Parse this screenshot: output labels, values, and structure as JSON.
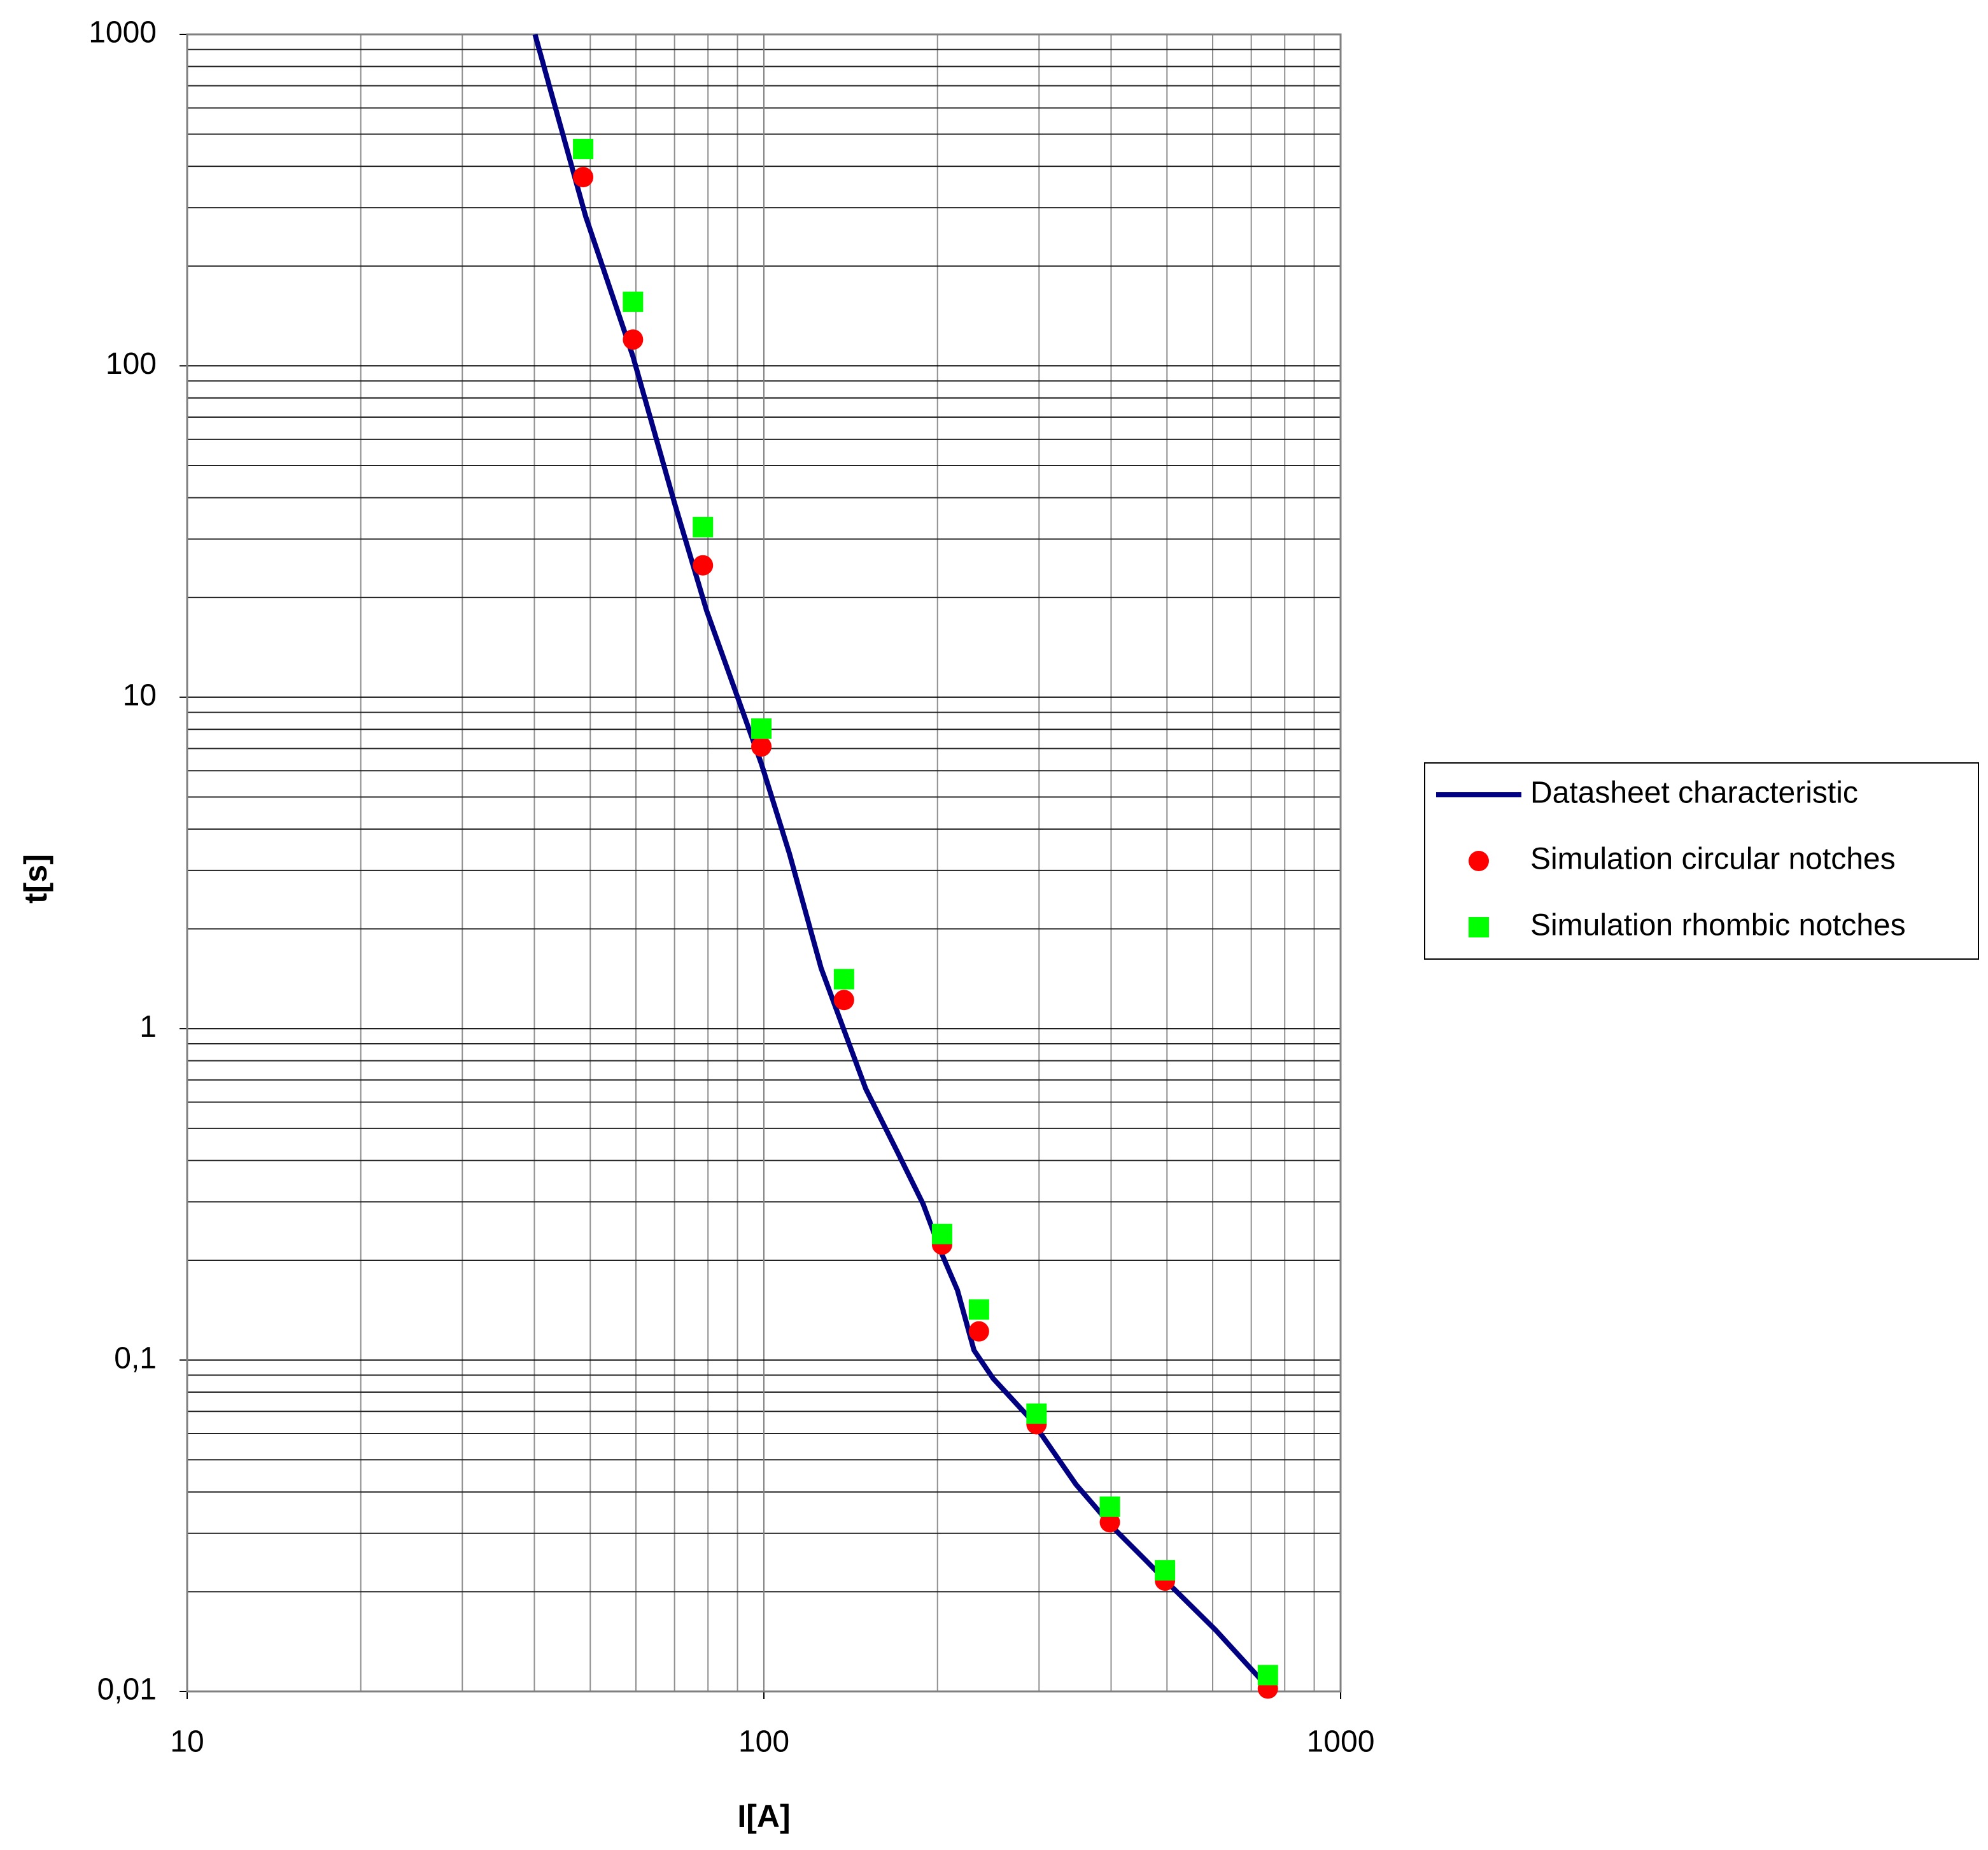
{
  "chart_data": {
    "type": "line",
    "x_label": "I[A]",
    "y_label": "t[s]",
    "log_x": true,
    "log_y": true,
    "grid": true,
    "minor_grid": true,
    "legend": "right",
    "xlim": [
      10,
      1000
    ],
    "ylim": [
      0.01,
      1000
    ],
    "xticks": [
      10,
      100,
      1000
    ],
    "yticks": [
      {
        "value": 0.01,
        "label": "0,01"
      },
      {
        "value": 0.1,
        "label": "0,1"
      },
      1,
      10,
      100,
      1000
    ],
    "series": [
      {
        "name": "Datasheet characteristic",
        "color": "#000080",
        "marker": "none",
        "x": [
          40.1,
          49.1,
          59.3,
          70,
          79.6,
          99,
          110.7,
          125.7,
          150.2,
          170.6,
          188.8,
          203.7,
          216.6,
          231.4,
          249.6,
          290.8,
          347.4,
          404.6,
          459,
          508,
          607.6,
          726,
          760
        ],
        "values": [
          1000,
          282,
          106.6,
          38.5,
          18.2,
          6.3,
          3.38,
          1.52,
          0.658,
          0.423,
          0.296,
          0.208,
          0.1624,
          0.107,
          0.0881,
          0.066,
          0.0422,
          0.031,
          0.0249,
          0.0208,
          0.0153,
          0.0109,
          0.01
        ]
      },
      {
        "name": "Simulation circular notches",
        "color": "#ff0000",
        "marker": "circle",
        "x": [
          48.6,
          59.3,
          78.4,
          99,
          137.7,
          203.7,
          236,
          297,
          398,
          496,
          748
        ],
        "values": [
          371,
          120,
          25,
          7.1,
          1.22,
          0.223,
          0.122,
          0.064,
          0.0324,
          0.0216,
          0.0102
        ]
      },
      {
        "name": "Simulation rhombic notches",
        "color": "#00ff00",
        "marker": "square",
        "x": [
          48.6,
          59.3,
          78.4,
          99,
          137.7,
          203.7,
          236,
          297,
          398,
          496,
          748
        ],
        "values": [
          451,
          156,
          32.6,
          8.04,
          1.41,
          0.24,
          0.142,
          0.0689,
          0.0361,
          0.0232,
          0.0112
        ]
      }
    ]
  }
}
